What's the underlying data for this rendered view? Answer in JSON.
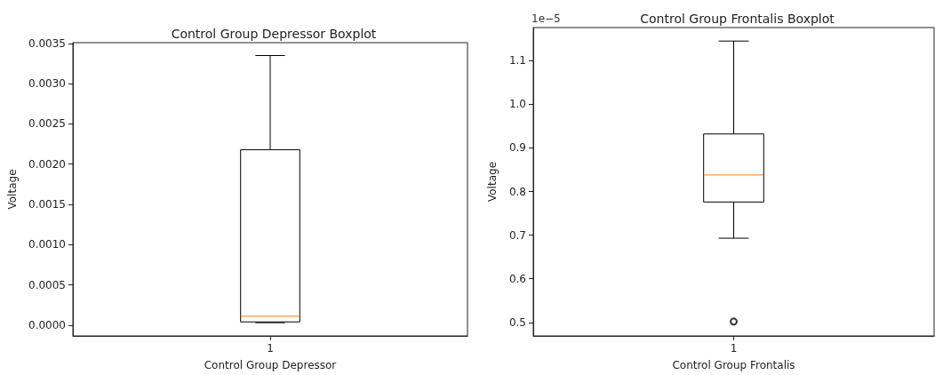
{
  "chart_data": [
    {
      "type": "box",
      "title": "Control Group Depressor Boxplot",
      "xlabel": "Control Group Depressor",
      "ylabel": "Voltage",
      "categories": [
        "1"
      ],
      "boxes": [
        {
          "low": 3e-05,
          "q1": 4e-05,
          "median": 0.00011,
          "q3": 0.00218,
          "high": 0.00335
        }
      ],
      "ylim": [
        -0.000134,
        0.00351
      ],
      "yticks": [
        {
          "value": 0,
          "label": "0.0000"
        },
        {
          "value": 0.0005,
          "label": "0.0005"
        },
        {
          "value": 0.001,
          "label": "0.0010"
        },
        {
          "value": 0.0015,
          "label": "0.0015"
        },
        {
          "value": 0.002,
          "label": "0.0020"
        },
        {
          "value": 0.0025,
          "label": "0.0025"
        },
        {
          "value": 0.003,
          "label": "0.0030"
        },
        {
          "value": 0.0035,
          "label": "0.0035"
        }
      ],
      "grid": false,
      "legend": false
    },
    {
      "type": "box",
      "title": "Control Group Frontalis Boxplot",
      "xlabel": "Control Group Frontalis",
      "ylabel": "Voltage",
      "categories": [
        "1"
      ],
      "annotations": [
        "1e−5"
      ],
      "boxes": [
        {
          "low": 0.693,
          "q1": 0.776,
          "median": 0.838,
          "q3": 0.932,
          "high": 1.145,
          "outliers": [
            0.502
          ]
        }
      ],
      "ylim": [
        0.469,
        1.176
      ],
      "yticks": [
        0.5,
        0.6,
        0.7,
        0.8,
        0.9,
        {
          "value": 1,
          "label": "1.0"
        },
        1.1
      ],
      "grid": false,
      "legend": false
    }
  ]
}
